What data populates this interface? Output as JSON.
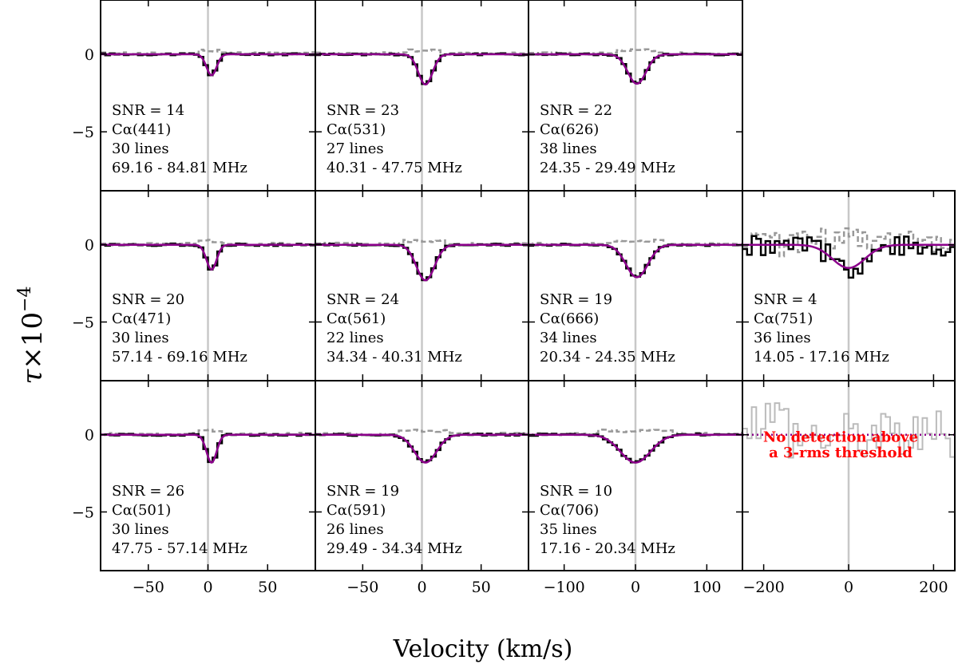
{
  "chart_data": {
    "type": "line",
    "xlabel": "Velocity (km/s)",
    "ylabel_main": "τ",
    "ylabel_times": "×",
    "ylabel_base": "10",
    "ylabel_exp": "−4",
    "ylim": [
      -8.8,
      3.5
    ],
    "yticks": [
      0,
      -5
    ],
    "ytick_labels": [
      "0",
      "−5"
    ],
    "columns": [
      {
        "xlim": [
          -90,
          90
        ],
        "xticks": [
          -50,
          0,
          50
        ],
        "xtick_labels": [
          "−50",
          "0",
          "50"
        ]
      },
      {
        "xlim": [
          -90,
          90
        ],
        "xticks": [
          -50,
          0,
          50
        ],
        "xtick_labels": [
          "−50",
          "0",
          "50"
        ]
      },
      {
        "xlim": [
          -150,
          150
        ],
        "xticks": [
          -100,
          0,
          100
        ],
        "xtick_labels": [
          "−100",
          "0",
          "100"
        ]
      },
      {
        "xlim": [
          -250,
          250
        ],
        "xticks": [
          -200,
          0,
          200
        ],
        "xtick_labels": [
          "−200",
          "0",
          "200"
        ]
      }
    ],
    "series_legend": [
      "stacked spectrum (black)",
      "residual (grey dashed)",
      "Gaussian fit (purple)"
    ],
    "panels": [
      {
        "row": 0,
        "col": 0,
        "snr": "SNR =  14",
        "transition": "Cα(441)",
        "lines": "30 lines",
        "freq": " 69.16 -  84.81 MHz",
        "peak": -1.35,
        "center": 3,
        "fwhm": 10
      },
      {
        "row": 0,
        "col": 1,
        "snr": "SNR =  23",
        "transition": "Cα(531)",
        "lines": "27 lines",
        "freq": " 40.31 -  47.75 MHz",
        "peak": -1.95,
        "center": 3,
        "fwhm": 14
      },
      {
        "row": 0,
        "col": 2,
        "snr": "SNR =  22",
        "transition": "Cα(626)",
        "lines": "38 lines",
        "freq": " 24.35 -  29.49 MHz",
        "peak": -1.9,
        "center": 2,
        "fwhm": 30
      },
      {
        "row": 1,
        "col": 0,
        "snr": "SNR = 20",
        "transition": "Cα(471)",
        "lines": "30 lines",
        "freq": " 57.14 -  69.16 MHz",
        "peak": -1.6,
        "center": 3,
        "fwhm": 10
      },
      {
        "row": 1,
        "col": 1,
        "snr": "SNR =  24",
        "transition": "Cα(561)",
        "lines": "22 lines",
        "freq": " 34.34 -  40.31 MHz",
        "peak": -2.3,
        "center": 3,
        "fwhm": 18
      },
      {
        "row": 1,
        "col": 2,
        "snr": "SNR =  19",
        "transition": "Cα(666)",
        "lines": "34 lines",
        "freq": " 20.34 -  24.35 MHz",
        "peak": -2.1,
        "center": 2,
        "fwhm": 36
      },
      {
        "row": 1,
        "col": 3,
        "snr": "SNR =  4",
        "transition": "Cα(751)",
        "lines": "36 lines",
        "freq": " 14.05 -  17.16 MHz",
        "peak": -1.5,
        "center": 0,
        "fwhm": 90,
        "noisy": true
      },
      {
        "row": 2,
        "col": 0,
        "snr": "SNR =  26",
        "transition": "Cα(501)",
        "lines": "30 lines",
        "freq": " 47.75 -  57.14 MHz",
        "peak": -1.8,
        "center": 3,
        "fwhm": 10
      },
      {
        "row": 2,
        "col": 1,
        "snr": "SNR =  19",
        "transition": "Cα(591)",
        "lines": "26 lines",
        "freq": " 29.49 -  34.34 MHz",
        "peak": -1.8,
        "center": 3,
        "fwhm": 22
      },
      {
        "row": 2,
        "col": 2,
        "snr": "SNR =  10",
        "transition": "Cα(706)",
        "lines": "35 lines",
        "freq": " 17.16 -  20.34 MHz",
        "peak": -1.8,
        "center": 0,
        "fwhm": 50
      },
      {
        "row": 2,
        "col": 3,
        "nodetect": true,
        "message_line1": "No detection above",
        "message_line2": "a 3-rms threshold"
      }
    ],
    "colors": {
      "data": "#000000",
      "residual": "#999999",
      "fit": "#8b008b",
      "vline": "#c8c8c8",
      "nodetect_text": "#ff0000",
      "nodetect_spectrum": "#bbbbbb",
      "nodetect_line": "#8b008b"
    }
  }
}
